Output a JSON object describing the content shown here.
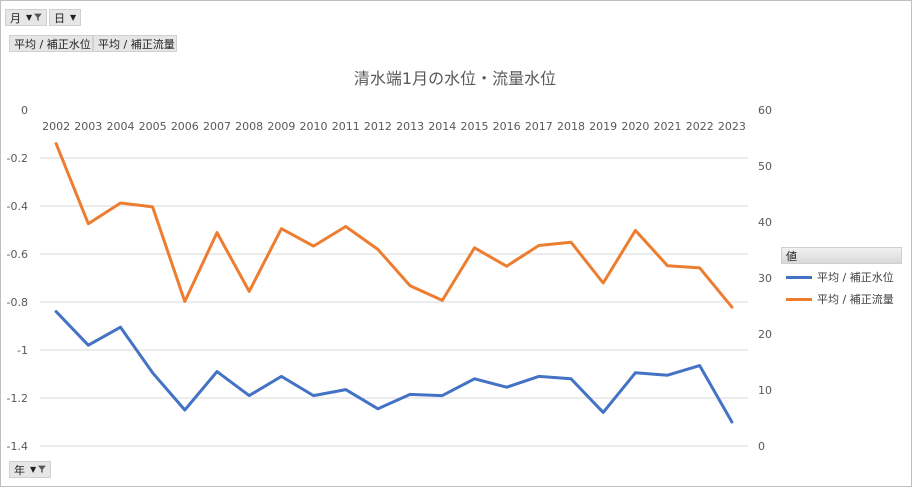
{
  "filters": {
    "month_label": "月",
    "day_label": "日",
    "year_label": "年"
  },
  "value_fields": [
    "平均 / 補正水位",
    "平均 / 補正流量"
  ],
  "legend": {
    "title": "値",
    "items": [
      {
        "label": "平均 / 補正水位",
        "color": "#4472c4"
      },
      {
        "label": "平均 / 補正流量",
        "color": "#ed7d31"
      }
    ]
  },
  "chart_data": {
    "type": "line",
    "title": "清水端1月の水位・流量水位",
    "categories": [
      "2002",
      "2003",
      "2004",
      "2005",
      "2006",
      "2007",
      "2008",
      "2009",
      "2010",
      "2011",
      "2012",
      "2013",
      "2014",
      "2015",
      "2016",
      "2017",
      "2018",
      "2019",
      "2020",
      "2021",
      "2022",
      "2023"
    ],
    "series": [
      {
        "name": "平均 / 補正水位",
        "axis": "left",
        "color": "#4472c4",
        "values": [
          -0.84,
          -0.98,
          -0.905,
          -1.095,
          -1.25,
          -1.09,
          -1.19,
          -1.11,
          -1.19,
          -1.165,
          -1.245,
          -1.185,
          -1.19,
          -1.12,
          -1.155,
          -1.11,
          -1.12,
          -1.26,
          -1.095,
          -1.105,
          -1.065,
          -1.3
        ]
      },
      {
        "name": "平均 / 補正流量",
        "axis": "right",
        "color": "#ed7d31",
        "values": [
          54,
          39.7,
          43.4,
          42.7,
          25.8,
          38.1,
          27.6,
          38.8,
          35.7,
          39.2,
          35.1,
          28.6,
          26,
          35.4,
          32.1,
          35.8,
          36.4,
          29.1,
          38.5,
          32.2,
          31.8,
          24.8
        ]
      }
    ],
    "y_left": {
      "min": -1.4,
      "max": 0,
      "ticks": [
        "0",
        "-0.2",
        "-0.4",
        "-0.6",
        "-0.8",
        "-1",
        "-1.2",
        "-1.4"
      ]
    },
    "y_right": {
      "min": 0,
      "max": 60,
      "ticks": [
        "60",
        "50",
        "40",
        "30",
        "20",
        "10",
        "0"
      ]
    },
    "grid": true,
    "legend_position": "right"
  }
}
